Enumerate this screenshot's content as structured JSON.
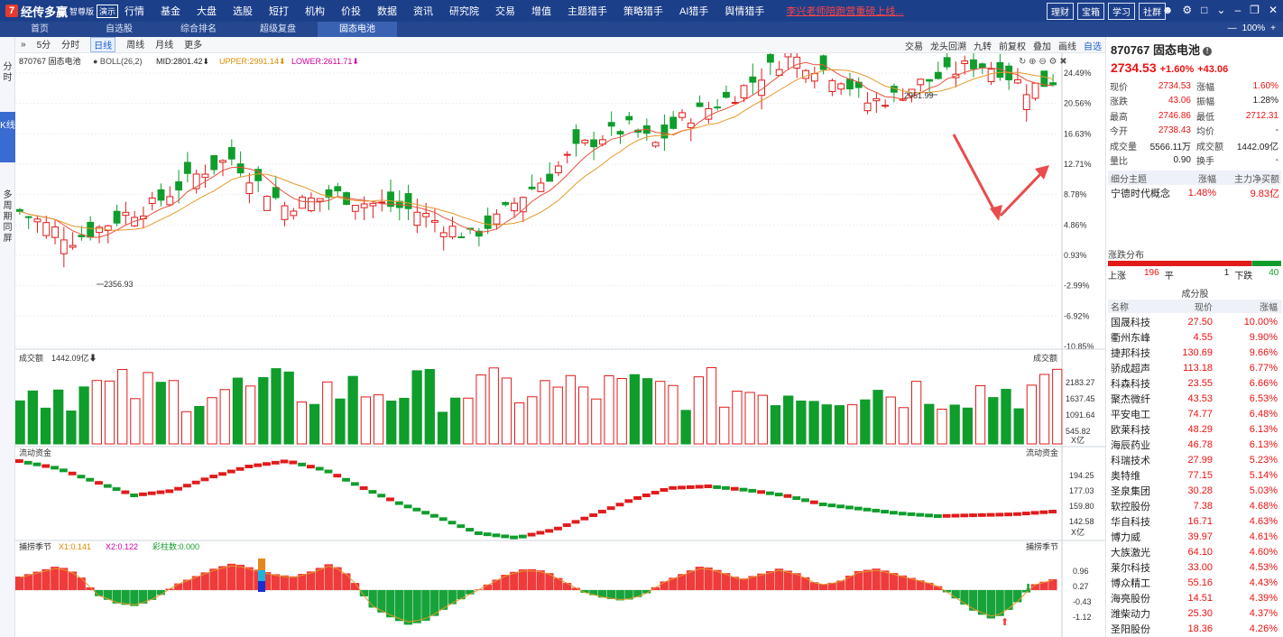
{
  "app": {
    "logo_mark": "7",
    "name": "经传多赢",
    "edition": "智尊版",
    "trial": "演示"
  },
  "nav": [
    "行情",
    "基金",
    "大盘",
    "选股",
    "短打",
    "机构",
    "价投",
    "数据",
    "资讯",
    "研究院",
    "交易",
    "增值",
    "主题猎手",
    "策略猎手",
    "AI猎手",
    "舆情猎手"
  ],
  "promo": "李兴老师陪跑营重磅上线...",
  "top_buttons": [
    "理财",
    "宝箱",
    "学习",
    "社群"
  ],
  "tabs": [
    "首页",
    "自选股",
    "综合排名",
    "超级复盘",
    "固态电池"
  ],
  "zoom": "100%",
  "left_strip": [
    "分时",
    "K线",
    "多周期同屏"
  ],
  "periods": [
    "5分",
    "分时",
    "日线",
    "周线",
    "月线",
    "更多"
  ],
  "chart_tools": [
    "交易",
    "龙头回溯",
    "九转",
    "前复权",
    "叠加",
    "画线",
    "自选"
  ],
  "stock": {
    "code": "870767",
    "name": "固态电池",
    "price": "2734.53",
    "pct": "+1.60%",
    "chg": "+43.06"
  },
  "boll": {
    "label": "870767 固态电池",
    "param": "BOLL(26,2)",
    "mid": "MID:2801.42",
    "upper": "UPPER:2991.14",
    "lower": "LOWER:2611.71"
  },
  "volume_panel": {
    "title": "成交额",
    "value": "1442.09亿",
    "ticks": [
      "2183.27",
      "1637.45",
      "1091.64",
      "545.82"
    ],
    "unit": "X亿"
  },
  "flow_panel": {
    "title": "流动资金",
    "ticks": [
      "194.25",
      "177.03",
      "159.80",
      "142.58"
    ],
    "unit": "X亿"
  },
  "catch_panel": {
    "title": "捕捞季节",
    "x1": "X1:0.141",
    "x2": "X2:0.122",
    "bars": "彩柱数:0.000",
    "ticks": [
      "0.96",
      "0.27",
      "-0.43",
      "-1.12"
    ]
  },
  "price_axis": [
    "24.49%",
    "20.56%",
    "16.63%",
    "12.71%",
    "8.78%",
    "4.86%",
    "0.93%",
    "-2.99%",
    "-6.92%",
    "-10.85%"
  ],
  "annotations": {
    "high": "2951.99",
    "low": "2356.93"
  },
  "quote": [
    {
      "k": "现价",
      "v": "2734.53",
      "k2": "涨幅",
      "v2": "1.60%",
      "c": "red",
      "c2": "red"
    },
    {
      "k": "涨跌",
      "v": "43.06",
      "k2": "振幅",
      "v2": "1.28%",
      "c": "red",
      "c2": ""
    },
    {
      "k": "最高",
      "v": "2746.86",
      "k2": "最低",
      "v2": "2712.31",
      "c": "red",
      "c2": "red"
    },
    {
      "k": "今开",
      "v": "2738.43",
      "k2": "均价",
      "v2": "-",
      "c": "red",
      "c2": ""
    },
    {
      "k": "成交量",
      "v": "5566.11万",
      "k2": "成交额",
      "v2": "1442.09亿",
      "c": "",
      "c2": ""
    },
    {
      "k": "量比",
      "v": "0.90",
      "k2": "换手",
      "v2": "-",
      "c": "",
      "c2": ""
    }
  ],
  "theme_head": [
    "细分主题",
    "涨幅",
    "主力净买额"
  ],
  "theme_row": {
    "name": "宁德时代概念",
    "pct": "1.48%",
    "net": "9.83亿"
  },
  "distribution": {
    "title": "涨跌分布",
    "up_label": "上涨",
    "up": "196",
    "flat_label": "平",
    "flat": "1",
    "down_label": "下跌",
    "down": "40"
  },
  "components_title": "成分股",
  "components_head": [
    "名称",
    "现价",
    "涨幅"
  ],
  "components": [
    {
      "n": "国晟科技",
      "p": "27.50",
      "c": "10.00%"
    },
    {
      "n": "衢州东峰",
      "p": "4.55",
      "c": "9.90%"
    },
    {
      "n": "捷邦科技",
      "p": "130.69",
      "c": "9.66%"
    },
    {
      "n": "骄成超声",
      "p": "113.18",
      "c": "6.77%"
    },
    {
      "n": "科森科技",
      "p": "23.55",
      "c": "6.66%"
    },
    {
      "n": "聚杰微纤",
      "p": "43.53",
      "c": "6.53%"
    },
    {
      "n": "平安电工",
      "p": "74.77",
      "c": "6.48%"
    },
    {
      "n": "欧莱科技",
      "p": "48.29",
      "c": "6.13%"
    },
    {
      "n": "海辰药业",
      "p": "46.78",
      "c": "6.13%"
    },
    {
      "n": "科瑞技术",
      "p": "27.99",
      "c": "5.23%"
    },
    {
      "n": "奥特维",
      "p": "77.15",
      "c": "5.14%"
    },
    {
      "n": "圣泉集团",
      "p": "30.28",
      "c": "5.03%"
    },
    {
      "n": "软控股份",
      "p": "7.38",
      "c": "4.68%"
    },
    {
      "n": "华自科技",
      "p": "16.71",
      "c": "4.63%"
    },
    {
      "n": "博力威",
      "p": "39.97",
      "c": "4.61%"
    },
    {
      "n": "大族激光",
      "p": "64.10",
      "c": "4.60%"
    },
    {
      "n": "莱尔科技",
      "p": "33.00",
      "c": "4.53%"
    },
    {
      "n": "博众精工",
      "p": "55.16",
      "c": "4.43%"
    },
    {
      "n": "海亮股份",
      "p": "14.51",
      "c": "4.39%"
    },
    {
      "n": "潍柴动力",
      "p": "25.30",
      "c": "4.37%"
    },
    {
      "n": "圣阳股份",
      "p": "18.36",
      "c": "4.26%"
    }
  ],
  "colors": {
    "up": "#e11b1b",
    "down": "#0f9d2c",
    "nav": "#1c3f8a",
    "accent": "#1b5fd1"
  }
}
